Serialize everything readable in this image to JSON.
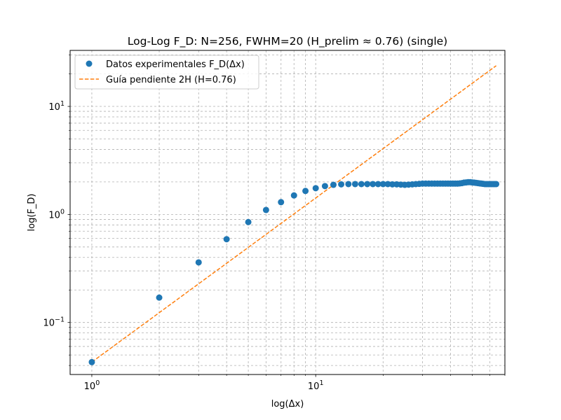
{
  "chart_data": {
    "type": "scatter",
    "title": "Log-Log F_D: N=256, FWHM=20 (H_prelim ≈ 0.76) (single)",
    "xlabel": "log(Δx)",
    "ylabel": "log(F_D)",
    "xscale": "log",
    "yscale": "log",
    "xlim": [
      0.8,
      70
    ],
    "ylim": [
      0.033,
      33
    ],
    "grid": true,
    "grid_which": "both",
    "legend_position": "top-left",
    "x_ticks": [
      {
        "value": 1,
        "base": "10",
        "exp": "0"
      },
      {
        "value": 10,
        "base": "10",
        "exp": "1"
      }
    ],
    "y_ticks": [
      {
        "value": 0.1,
        "base": "10",
        "exp": "−1"
      },
      {
        "value": 1,
        "base": "10",
        "exp": "0"
      },
      {
        "value": 10,
        "base": "10",
        "exp": "1"
      }
    ],
    "series": [
      {
        "name": "Datos experimentales F_D(Δx)",
        "kind": "scatter",
        "color": "#1f77b4",
        "x": [
          1,
          2,
          3,
          4,
          5,
          6,
          7,
          8,
          9,
          10,
          11,
          12,
          13,
          14,
          15,
          16,
          17,
          18,
          19,
          20,
          21,
          22,
          23,
          24,
          25,
          26,
          27,
          28,
          29,
          30,
          31,
          32,
          33,
          34,
          35,
          36,
          37,
          38,
          39,
          40,
          41,
          42,
          43,
          44,
          45,
          46,
          47,
          48,
          49,
          50,
          51,
          52,
          53,
          54,
          55,
          56,
          57,
          58,
          59,
          60,
          61,
          62,
          63,
          64
        ],
        "y": [
          0.043,
          0.17,
          0.36,
          0.59,
          0.85,
          1.1,
          1.3,
          1.5,
          1.65,
          1.75,
          1.83,
          1.88,
          1.9,
          1.91,
          1.91,
          1.91,
          1.91,
          1.91,
          1.91,
          1.91,
          1.91,
          1.9,
          1.9,
          1.89,
          1.88,
          1.89,
          1.9,
          1.91,
          1.92,
          1.93,
          1.93,
          1.93,
          1.93,
          1.93,
          1.93,
          1.93,
          1.93,
          1.93,
          1.93,
          1.93,
          1.93,
          1.93,
          1.93,
          1.94,
          1.95,
          1.97,
          1.98,
          1.99,
          1.99,
          1.98,
          1.97,
          1.96,
          1.95,
          1.94,
          1.93,
          1.92,
          1.91,
          1.91,
          1.91,
          1.91,
          1.91,
          1.91,
          1.91,
          1.91
        ]
      },
      {
        "name": "Guía pendiente 2H (H=0.76)",
        "kind": "line",
        "dash": true,
        "color": "#ff7f0e",
        "x": [
          1,
          64
        ],
        "y": [
          0.043,
          23.8
        ]
      }
    ]
  }
}
